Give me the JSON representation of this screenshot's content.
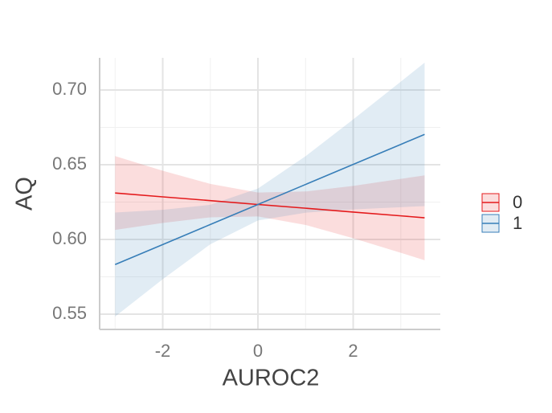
{
  "chart_data": {
    "type": "line",
    "x_label": "AUROC2",
    "y_label": "AQ",
    "x": [
      -3,
      -2,
      -1,
      0,
      1,
      2,
      3,
      3.5
    ],
    "series": [
      {
        "name": "0",
        "color": "#e41a1c",
        "values": [
          0.6311,
          0.6285,
          0.626,
          0.6234,
          0.6209,
          0.6183,
          0.6158,
          0.6145
        ],
        "lower": [
          0.6064,
          0.611,
          0.6148,
          0.6154,
          0.6097,
          0.6008,
          0.5911,
          0.5861
        ],
        "upper": [
          0.6558,
          0.646,
          0.6372,
          0.6314,
          0.6321,
          0.6358,
          0.6405,
          0.6429
        ]
      },
      {
        "name": "1",
        "color": "#377eb8",
        "values": [
          0.5832,
          0.5966,
          0.61,
          0.6234,
          0.6368,
          0.6502,
          0.6636,
          0.6703
        ],
        "lower": [
          0.5484,
          0.5734,
          0.5968,
          0.6127,
          0.6179,
          0.6201,
          0.6216,
          0.6223
        ],
        "upper": [
          0.618,
          0.6198,
          0.6232,
          0.6341,
          0.6557,
          0.6803,
          0.7056,
          0.7183
        ]
      }
    ],
    "xlim": [
      -3.325,
      3.83
    ],
    "ylim": [
      0.5398,
      0.7215
    ],
    "xticks": [
      -2,
      0,
      2
    ],
    "yticks": [
      0.55,
      {
        "value": 0.6,
        "label": "0.60"
      },
      0.65,
      {
        "value": 0.7,
        "label": "0.70"
      }
    ],
    "xminor": [
      -3,
      -1,
      1,
      3
    ],
    "yminor": [
      0.575,
      0.625,
      0.675
    ],
    "grid": true,
    "legend": "right"
  }
}
